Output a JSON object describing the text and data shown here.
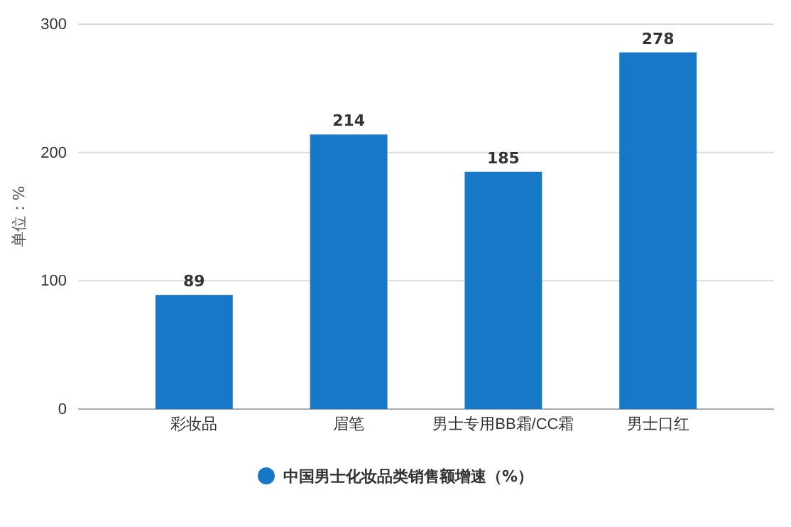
{
  "chart_data": {
    "type": "bar",
    "ylabel": "单位：%",
    "categories": [
      "彩妆品",
      "眉笔",
      "男士专用BB霜/CC霜",
      "男士口红"
    ],
    "series": [
      {
        "name": "中国男士化妆品类销售额增速（%）",
        "color": "#1878c8",
        "values": [
          89,
          214,
          185,
          278
        ]
      }
    ],
    "ylim": [
      0,
      300
    ],
    "yticks": [
      0,
      100,
      200,
      300
    ],
    "grid": "y",
    "legend": "bottom",
    "data_labels": true
  }
}
